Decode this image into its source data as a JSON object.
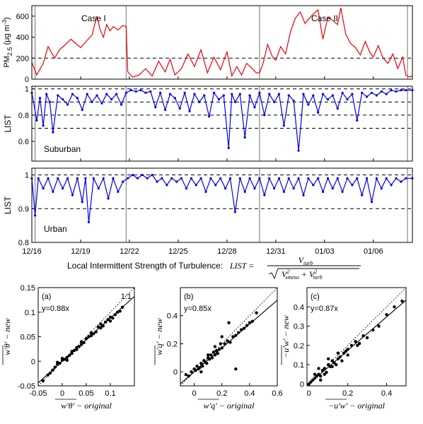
{
  "colors": {
    "pm": "#e8000b",
    "list": "#0000ee",
    "text": "#000000",
    "event_line": "#888888"
  },
  "formula": {
    "prefix": "Local Intermittent Strength of Turbulence:",
    "lhs": "LIST",
    "numerator": "V",
    "numerator_sub": "turb",
    "den_v1": "V",
    "den_v1_sub": "smeso",
    "den_v1_sup": "2",
    "den_v2": "V",
    "den_v2_sub": "turb",
    "den_v2_sup": "2"
  },
  "time_axis": {
    "ticks": [
      "12/16",
      "12/19",
      "12/22",
      "12/25",
      "12/28",
      "12/31",
      "01/03",
      "01/06"
    ],
    "tick_days": [
      0,
      3,
      6,
      9,
      12,
      15,
      18,
      21
    ],
    "range_days": [
      0,
      23.4
    ],
    "event_lines_days": [
      0.2,
      5.8,
      14.0,
      23.1
    ]
  },
  "chart_data": [
    {
      "type": "line",
      "id": "pm25",
      "ylabel": "PM",
      "ylabel_sub": "2.5",
      "ylabel_units": "(μg m",
      "ylabel_units_sup": "-3",
      "ylabel_units_close": ")",
      "ylim": [
        0,
        700
      ],
      "yticks": [
        0,
        200,
        400,
        600
      ],
      "ref_lines": [
        200
      ],
      "annotations": [
        "Case I",
        "Case II"
      ],
      "x": [
        0,
        0.3,
        0.7,
        1.0,
        1.4,
        1.7,
        2.0,
        2.4,
        2.7,
        3.0,
        3.4,
        3.7,
        4.0,
        4.2,
        4.4,
        4.6,
        4.8,
        5.0,
        5.3,
        5.6,
        5.8,
        5.9,
        6.2,
        6.6,
        7.0,
        7.4,
        7.8,
        8.2,
        8.5,
        8.8,
        9.2,
        9.6,
        10.0,
        10.4,
        10.8,
        11.2,
        11.6,
        12.0,
        12.3,
        12.6,
        12.9,
        13.2,
        13.5,
        13.8,
        14.0,
        14.2,
        14.5,
        14.8,
        15.0,
        15.3,
        15.6,
        15.9,
        16.2,
        16.5,
        16.8,
        17.0,
        17.3,
        17.6,
        17.9,
        18.2,
        18.5,
        18.8,
        19.0,
        19.3,
        19.6,
        19.9,
        20.2,
        20.5,
        20.8,
        21.0,
        21.3,
        21.6,
        21.9,
        22.2,
        22.5,
        22.8,
        23.0,
        23.2,
        23.4
      ],
      "values": [
        160,
        40,
        150,
        310,
        200,
        280,
        320,
        380,
        340,
        300,
        370,
        420,
        600,
        470,
        400,
        520,
        460,
        500,
        470,
        510,
        500,
        70,
        20,
        40,
        100,
        30,
        170,
        70,
        190,
        40,
        100,
        240,
        120,
        280,
        60,
        210,
        90,
        260,
        30,
        120,
        40,
        150,
        110,
        60,
        60,
        140,
        330,
        210,
        180,
        310,
        240,
        450,
        580,
        640,
        530,
        570,
        620,
        660,
        380,
        590,
        560,
        520,
        680,
        430,
        340,
        300,
        230,
        360,
        250,
        210,
        320,
        200,
        150,
        240,
        100,
        210,
        40,
        20,
        30
      ]
    },
    {
      "type": "line",
      "id": "list_suburban",
      "ylabel": "LIST",
      "annotation": "Suburban",
      "ylim": [
        0.45,
        1.02
      ],
      "yticks": [
        0.6,
        0.8,
        1.0
      ],
      "ytick_labels": [
        "0.6",
        "0.8",
        "1"
      ],
      "ref_lines": [
        0.7,
        0.8,
        0.9,
        1.0
      ],
      "x": [
        0,
        0.3,
        0.5,
        0.7,
        0.9,
        1.1,
        1.3,
        1.6,
        1.9,
        2.2,
        2.5,
        2.8,
        3.1,
        3.4,
        3.7,
        4.0,
        4.3,
        4.6,
        4.9,
        5.2,
        5.5,
        5.8,
        6.1,
        6.4,
        6.7,
        7.0,
        7.3,
        7.6,
        7.9,
        8.2,
        8.5,
        8.8,
        9.1,
        9.4,
        9.7,
        10.0,
        10.3,
        10.6,
        10.9,
        11.2,
        11.5,
        11.8,
        12.1,
        12.3,
        12.5,
        12.8,
        13.1,
        13.4,
        13.7,
        14.0,
        14.3,
        14.6,
        14.9,
        15.2,
        15.5,
        15.8,
        16.1,
        16.4,
        16.7,
        17.0,
        17.3,
        17.6,
        17.9,
        18.2,
        18.5,
        18.8,
        19.1,
        19.4,
        19.7,
        20.0,
        20.3,
        20.6,
        20.9,
        21.2,
        21.5,
        21.8,
        22.1,
        22.4,
        22.7,
        23.0,
        23.4
      ],
      "values": [
        0.97,
        0.76,
        0.93,
        0.72,
        0.96,
        0.9,
        0.67,
        0.95,
        0.92,
        0.88,
        0.96,
        0.93,
        0.84,
        0.96,
        0.9,
        0.95,
        0.89,
        0.96,
        0.92,
        0.96,
        0.88,
        0.97,
        0.99,
        0.98,
        0.99,
        0.97,
        0.98,
        0.86,
        0.97,
        0.84,
        0.96,
        0.93,
        0.85,
        0.97,
        0.83,
        0.96,
        0.9,
        0.95,
        0.79,
        0.97,
        0.92,
        0.95,
        0.55,
        0.96,
        0.9,
        0.96,
        0.63,
        0.95,
        0.86,
        0.97,
        0.8,
        0.96,
        0.9,
        0.96,
        0.72,
        0.95,
        0.91,
        0.53,
        0.96,
        0.88,
        0.95,
        0.82,
        0.96,
        0.92,
        0.95,
        0.85,
        0.97,
        0.92,
        0.96,
        0.76,
        0.97,
        0.94,
        0.97,
        0.95,
        0.98,
        0.96,
        0.99,
        0.98,
        0.99,
        0.99,
        0.99
      ]
    },
    {
      "type": "line",
      "id": "list_urban",
      "ylabel": "LIST",
      "annotation": "Urban",
      "ylim": [
        0.8,
        1.02
      ],
      "yticks": [
        0.8,
        0.9,
        1.0
      ],
      "ytick_labels": [
        "0.8",
        "0.9",
        "1"
      ],
      "ref_lines": [
        0.9,
        1.0
      ],
      "x": [
        0,
        0.2,
        0.4,
        0.7,
        1.0,
        1.3,
        1.6,
        1.9,
        2.2,
        2.5,
        2.8,
        3.1,
        3.3,
        3.5,
        3.8,
        4.1,
        4.4,
        4.7,
        5.0,
        5.3,
        5.6,
        5.9,
        6.2,
        6.5,
        6.8,
        7.1,
        7.4,
        7.7,
        8.0,
        8.3,
        8.6,
        8.9,
        9.2,
        9.5,
        9.8,
        10.1,
        10.4,
        10.7,
        11.0,
        11.3,
        11.6,
        11.9,
        12.2,
        12.5,
        12.8,
        13.1,
        13.4,
        13.7,
        14.0,
        14.3,
        14.6,
        14.9,
        15.2,
        15.5,
        15.8,
        16.1,
        16.4,
        16.7,
        17.0,
        17.3,
        17.6,
        17.9,
        18.2,
        18.5,
        18.8,
        19.1,
        19.4,
        19.7,
        20.0,
        20.3,
        20.6,
        20.9,
        21.2,
        21.5,
        21.8,
        22.1,
        22.4,
        22.7,
        23.0,
        23.4
      ],
      "values": [
        0.99,
        0.88,
        0.99,
        0.96,
        0.99,
        0.95,
        0.99,
        0.96,
        0.99,
        0.94,
        0.99,
        0.92,
        0.99,
        0.86,
        0.99,
        0.96,
        0.99,
        0.93,
        0.99,
        0.95,
        0.98,
        0.99,
        1.0,
        0.99,
        1.0,
        0.99,
        1.0,
        0.98,
        0.99,
        0.97,
        0.99,
        0.98,
        0.99,
        0.96,
        0.99,
        0.97,
        0.99,
        0.95,
        0.99,
        0.97,
        0.99,
        0.96,
        0.99,
        0.89,
        0.99,
        0.95,
        0.99,
        0.96,
        0.99,
        0.94,
        0.99,
        0.96,
        0.99,
        0.95,
        0.99,
        0.96,
        0.99,
        0.94,
        0.99,
        0.97,
        0.99,
        0.95,
        0.99,
        0.96,
        0.99,
        0.95,
        0.99,
        0.97,
        0.99,
        0.94,
        0.99,
        0.92,
        0.99,
        0.96,
        0.99,
        0.97,
        0.99,
        0.98,
        0.99,
        0.99
      ]
    },
    {
      "type": "scatter",
      "id": "scatter_a",
      "panel_label": "(a)",
      "fit_label": "y=0.88x",
      "one_to_one_label": "1:1",
      "slope": 0.88,
      "xlabel": "w'θ' − original",
      "ylabel": "w'θ' − new",
      "xlim": [
        -0.05,
        0.15
      ],
      "ylim": [
        -0.05,
        0.15
      ],
      "xticks": [
        -0.05,
        0,
        0.05,
        0.1
      ],
      "xtick_labels": [
        "-0.05",
        "0",
        "0.05",
        "0.1"
      ],
      "yticks": [
        -0.05,
        0,
        0.05,
        0.1,
        0.15
      ],
      "ytick_labels": [
        "-0.05",
        "0",
        "0.05",
        "0.1",
        "0.15"
      ],
      "x": [
        -0.04,
        -0.03,
        -0.025,
        -0.02,
        -0.015,
        -0.01,
        -0.005,
        0.0,
        0.005,
        0.01,
        0.015,
        0.02,
        0.025,
        0.03,
        0.035,
        0.04,
        0.045,
        0.05,
        0.055,
        0.06,
        0.065,
        0.07,
        0.075,
        0.08,
        0.085,
        0.09,
        0.095,
        0.1,
        0.105,
        0.11,
        0.115,
        0.12,
        0.125,
        -0.01,
        0.0,
        0.01,
        0.02,
        0.03,
        0.04,
        0.06,
        0.08,
        0.1
      ],
      "y": [
        -0.04,
        -0.028,
        -0.024,
        -0.018,
        -0.012,
        -0.006,
        -0.004,
        0.002,
        0.004,
        0.008,
        0.012,
        0.016,
        0.022,
        0.028,
        0.03,
        0.034,
        0.038,
        0.046,
        0.05,
        0.052,
        0.056,
        0.06,
        0.07,
        0.068,
        0.072,
        0.08,
        0.085,
        0.09,
        0.088,
        0.095,
        0.1,
        0.102,
        0.11,
        -0.002,
        0.006,
        0.002,
        0.02,
        0.024,
        0.04,
        0.058,
        0.076,
        0.082
      ]
    },
    {
      "type": "scatter",
      "id": "scatter_b",
      "panel_label": "(b)",
      "fit_label": "y=0.85x",
      "slope": 0.85,
      "xlabel": "w'q' − original",
      "ylabel": "w'q' − new",
      "xlim": [
        -0.1,
        0.6
      ],
      "ylim": [
        -0.1,
        0.6
      ],
      "xticks": [
        0,
        0.2,
        0.4,
        0.6
      ],
      "xtick_labels": [
        "0",
        "0.2",
        "0.4",
        "0.6"
      ],
      "yticks": [
        0,
        0.2,
        0.4
      ],
      "ytick_labels": [
        "0",
        "0.2",
        "0.4"
      ],
      "x": [
        -0.06,
        -0.04,
        -0.02,
        0.0,
        0.01,
        0.02,
        0.03,
        0.04,
        0.05,
        0.06,
        0.07,
        0.08,
        0.09,
        0.1,
        0.11,
        0.12,
        0.13,
        0.14,
        0.15,
        0.16,
        0.17,
        0.18,
        0.19,
        0.2,
        0.22,
        0.24,
        0.26,
        0.28,
        0.3,
        0.32,
        0.34,
        0.36,
        0.38,
        0.4,
        0.42,
        0.45,
        0.3,
        0.2,
        0.1,
        0.05,
        0.15,
        0.25
      ],
      "y": [
        -0.02,
        -0.03,
        0.0,
        0.02,
        0.01,
        0.04,
        0.02,
        0.03,
        0.06,
        0.04,
        0.08,
        0.07,
        0.06,
        0.1,
        0.09,
        0.12,
        0.1,
        0.14,
        0.12,
        0.15,
        0.13,
        0.16,
        0.2,
        0.17,
        0.2,
        0.22,
        0.21,
        0.25,
        0.26,
        0.28,
        0.3,
        0.31,
        0.33,
        0.35,
        0.36,
        0.42,
        0.02,
        0.25,
        0.12,
        0.0,
        0.18,
        0.35
      ]
    },
    {
      "type": "scatter",
      "id": "scatter_c",
      "panel_label": "(c)",
      "fit_label": "y=0.87x",
      "slope": 0.87,
      "xlabel": "−u'w' − original",
      "ylabel": "−u'w' − new",
      "xlim": [
        -0.01,
        0.5
      ],
      "ylim": [
        -0.01,
        0.5
      ],
      "xticks": [
        0,
        0.2,
        0.4
      ],
      "xtick_labels": [
        "0",
        "0.2",
        "0.4"
      ],
      "yticks": [
        0,
        0.1,
        0.2,
        0.3,
        0.4
      ],
      "ytick_labels": [
        "0",
        "0.1",
        "0.2",
        "0.3",
        "0.4"
      ],
      "x": [
        0.0,
        0.01,
        0.02,
        0.03,
        0.04,
        0.05,
        0.06,
        0.07,
        0.08,
        0.09,
        0.1,
        0.11,
        0.12,
        0.13,
        0.14,
        0.15,
        0.16,
        0.17,
        0.18,
        0.19,
        0.2,
        0.22,
        0.24,
        0.26,
        0.28,
        0.3,
        0.33,
        0.36,
        0.4,
        0.44,
        0.48,
        0.05,
        0.08,
        0.1,
        0.12,
        0.06,
        0.03,
        0.15,
        0.2,
        0.25
      ],
      "y": [
        0.0,
        0.01,
        0.02,
        0.03,
        0.04,
        0.05,
        0.04,
        0.07,
        0.08,
        0.06,
        0.1,
        0.09,
        0.12,
        0.11,
        0.1,
        0.13,
        0.14,
        0.12,
        0.16,
        0.17,
        0.15,
        0.2,
        0.22,
        0.21,
        0.25,
        0.24,
        0.28,
        0.3,
        0.36,
        0.4,
        0.43,
        0.08,
        0.05,
        0.13,
        0.09,
        0.02,
        0.05,
        0.16,
        0.18,
        0.2
      ]
    }
  ]
}
